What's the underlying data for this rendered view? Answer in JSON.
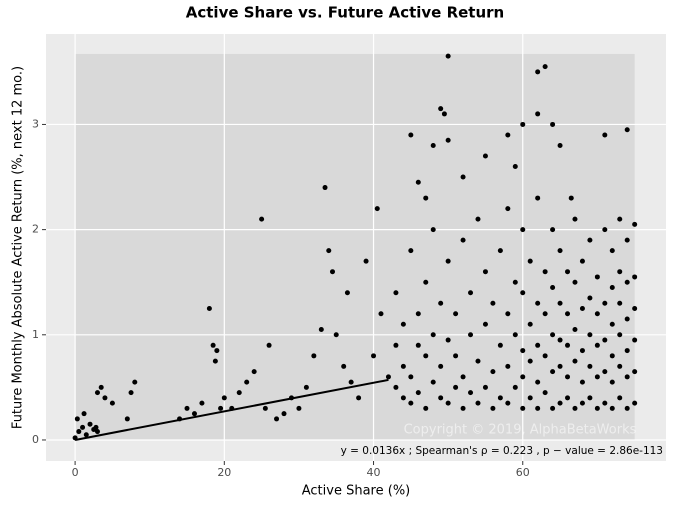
{
  "chart_data": {
    "type": "scatter",
    "title": "Active Share vs. Future Active Return",
    "x_label": "Active Share (%)",
    "y_label": "Future Monthly Absolute Active Return (%, next 12 mo.)",
    "annotation": "y = 0.0136x ;  Spearman's ρ = 0.223 ,  p − value = 2.86e-113",
    "watermark": "Copyright © 2019, AlphaBetaWorks",
    "xlim": [
      -3.9,
      79.2
    ],
    "ylim": [
      -0.2,
      3.86
    ],
    "xticks": [
      0,
      20,
      40,
      60
    ],
    "yticks": [
      0,
      1,
      2,
      3
    ],
    "grid": true,
    "shade": {
      "x": [
        0,
        75
      ],
      "y": [
        0,
        3.67
      ],
      "color": "#d9d9d9"
    },
    "fit_line": {
      "x": [
        0,
        42
      ],
      "y": [
        0,
        0.571
      ],
      "color": "#000000"
    },
    "series": [
      {
        "color": "#000000",
        "x": [
          0,
          0.5,
          1,
          1.5,
          2,
          2.5,
          3,
          3.5,
          4,
          3,
          5,
          7,
          7.5,
          8,
          0.3,
          1.2,
          2.8,
          14,
          15,
          16,
          17,
          18,
          18.5,
          19,
          18.8,
          19.5,
          20,
          21,
          22,
          23,
          24,
          25,
          25.5,
          26,
          27,
          28,
          29,
          30,
          31,
          32,
          33,
          33.5,
          34,
          34.5,
          35,
          36,
          36.5,
          37,
          38,
          39,
          40,
          40.5,
          41,
          42,
          50,
          49,
          49.5,
          50,
          60,
          62,
          63,
          62,
          64,
          65,
          66.5,
          71,
          74,
          45,
          46,
          47,
          48,
          52,
          55,
          58,
          59,
          43,
          43,
          43,
          44,
          44,
          44,
          45,
          45,
          45,
          46,
          46,
          46,
          47,
          47,
          47,
          48,
          48,
          48,
          49,
          49,
          49,
          50,
          50,
          50,
          51,
          51,
          51,
          52,
          52,
          52,
          53,
          53,
          53,
          54,
          54,
          54,
          55,
          55,
          55,
          56,
          56,
          56,
          57,
          57,
          57,
          58,
          58,
          58,
          58,
          59,
          59,
          59,
          60,
          60,
          60,
          60,
          60,
          61,
          61,
          61,
          61,
          62,
          62,
          62,
          62,
          62,
          63,
          63,
          63,
          63,
          64,
          64,
          64,
          64,
          64,
          65,
          65,
          65,
          65,
          65,
          66,
          66,
          66,
          66,
          66,
          67,
          67,
          67,
          67,
          67,
          68,
          68,
          68,
          68,
          68,
          69,
          69,
          69,
          69,
          69,
          70,
          70,
          70,
          70,
          70,
          71,
          71,
          71,
          71,
          71,
          72,
          72,
          72,
          72,
          72,
          72,
          73,
          73,
          73,
          73,
          73,
          73,
          74,
          74,
          74,
          74,
          74,
          74,
          75,
          75,
          75,
          75,
          75,
          75
        ],
        "y": [
          0.02,
          0.08,
          0.12,
          0.05,
          0.15,
          0.1,
          0.45,
          0.5,
          0.4,
          0.08,
          0.35,
          0.2,
          0.45,
          0.55,
          0.2,
          0.25,
          0.12,
          0.2,
          0.3,
          0.25,
          0.35,
          1.25,
          0.9,
          0.85,
          0.75,
          0.3,
          0.4,
          0.3,
          0.45,
          0.55,
          0.65,
          2.1,
          0.3,
          0.9,
          0.2,
          0.25,
          0.4,
          0.3,
          0.5,
          0.8,
          1.05,
          2.4,
          1.8,
          1.6,
          1.0,
          0.7,
          1.4,
          0.55,
          0.4,
          1.7,
          0.8,
          2.2,
          1.2,
          0.6,
          3.65,
          3.15,
          3.1,
          2.85,
          3.0,
          3.5,
          3.55,
          3.1,
          3.0,
          2.8,
          2.3,
          2.9,
          2.95,
          2.9,
          2.45,
          2.3,
          2.8,
          2.5,
          2.7,
          2.9,
          2.6,
          0.5,
          0.9,
          1.4,
          0.4,
          1.1,
          0.7,
          0.6,
          1.8,
          0.35,
          0.45,
          1.2,
          0.9,
          0.3,
          0.8,
          1.5,
          0.55,
          1.0,
          2.0,
          0.4,
          0.7,
          1.3,
          0.35,
          0.95,
          1.7,
          0.5,
          1.2,
          0.8,
          0.3,
          0.6,
          1.9,
          0.45,
          1.0,
          1.4,
          0.35,
          0.75,
          2.1,
          0.5,
          1.1,
          1.6,
          0.3,
          0.65,
          1.3,
          0.4,
          0.9,
          1.8,
          0.35,
          0.7,
          1.2,
          2.2,
          0.5,
          1.0,
          1.5,
          0.3,
          0.6,
          0.85,
          1.4,
          2.0,
          0.4,
          0.75,
          1.1,
          1.7,
          0.3,
          0.55,
          0.9,
          1.3,
          2.3,
          0.45,
          0.8,
          1.2,
          1.6,
          0.3,
          0.65,
          1.0,
          1.45,
          2.0,
          0.35,
          0.7,
          0.95,
          1.3,
          1.8,
          0.4,
          0.6,
          0.9,
          1.2,
          1.6,
          0.3,
          0.75,
          1.05,
          1.5,
          2.1,
          0.35,
          0.55,
          0.85,
          1.25,
          1.7,
          0.4,
          0.7,
          1.0,
          1.35,
          1.9,
          0.3,
          0.6,
          0.9,
          1.2,
          1.55,
          0.35,
          0.65,
          0.95,
          1.3,
          2.0,
          0.3,
          0.55,
          0.8,
          1.1,
          1.45,
          1.8,
          0.4,
          0.7,
          1.0,
          1.3,
          1.6,
          2.1,
          0.3,
          0.6,
          0.85,
          1.15,
          1.5,
          1.9,
          0.35,
          0.65,
          0.95,
          1.25,
          1.55,
          2.05
        ]
      }
    ]
  }
}
